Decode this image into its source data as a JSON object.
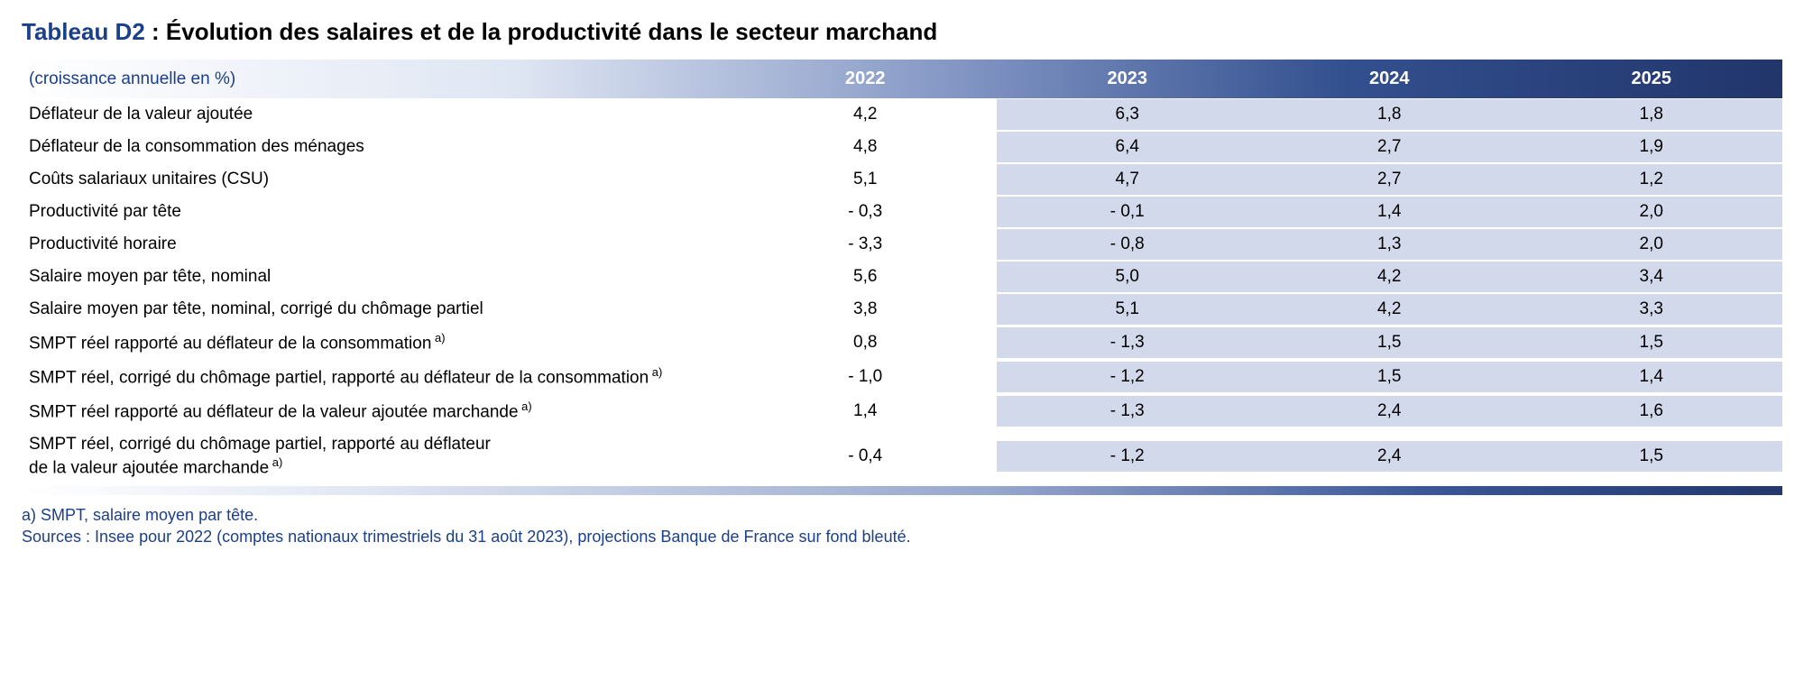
{
  "title": {
    "prefix": "Tableau D2",
    "separator": " : ",
    "text": "Évolution des salaires et de la productivité dans le secteur marchand"
  },
  "header": {
    "label": "(croissance annuelle en %)",
    "years": [
      "2022",
      "2023",
      "2024",
      "2025"
    ]
  },
  "colors": {
    "brand": "#1b3f8b",
    "tint_bg": "#d2d9eb",
    "white": "#ffffff",
    "text": "#000000"
  },
  "column_tints": [
    "white",
    "tint",
    "tint",
    "tint"
  ],
  "rows": [
    {
      "label": "Déflateur de la valeur ajoutée",
      "sup": "",
      "values": [
        "4,2",
        "6,3",
        "1,8",
        "1,8"
      ]
    },
    {
      "label": "Déflateur de la consommation des ménages",
      "sup": "",
      "values": [
        "4,8",
        "6,4",
        "2,7",
        "1,9"
      ]
    },
    {
      "label": "Coûts salariaux unitaires (CSU)",
      "sup": "",
      "values": [
        "5,1",
        "4,7",
        "2,7",
        "1,2"
      ]
    },
    {
      "label": "Productivité par tête",
      "sup": "",
      "values": [
        "- 0,3",
        "- 0,1",
        "1,4",
        "2,0"
      ]
    },
    {
      "label": "Productivité horaire",
      "sup": "",
      "values": [
        "- 3,3",
        "- 0,8",
        "1,3",
        "2,0"
      ]
    },
    {
      "label": "Salaire moyen par tête, nominal",
      "sup": "",
      "values": [
        "5,6",
        "5,0",
        "4,2",
        "3,4"
      ]
    },
    {
      "label": "Salaire moyen par tête, nominal, corrigé du chômage partiel",
      "sup": "",
      "values": [
        "3,8",
        "5,1",
        "4,2",
        "3,3"
      ]
    },
    {
      "label": "SMPT réel rapporté au déflateur de la consommation",
      "sup": "a)",
      "values": [
        "0,8",
        "- 1,3",
        "1,5",
        "1,5"
      ]
    },
    {
      "label": "SMPT réel, corrigé du chômage partiel, rapporté au déflateur de la consommation",
      "sup": "a)",
      "values": [
        "- 1,0",
        "- 1,2",
        "1,5",
        "1,4"
      ]
    },
    {
      "label": "SMPT réel rapporté au déflateur de la valeur ajoutée marchande",
      "sup": "a)",
      "values": [
        "1,4",
        "- 1,3",
        "2,4",
        "1,6"
      ]
    },
    {
      "label": "SMPT réel, corrigé du chômage partiel, rapporté au déflateur\nde la valeur ajoutée marchande",
      "sup": "a)",
      "values": [
        "- 0,4",
        "- 1,2",
        "2,4",
        "1,5"
      ]
    }
  ],
  "footnotes": {
    "note_a": "a)  SMPT, salaire moyen par tête.",
    "sources": "Sources : Insee pour 2022 (comptes nationaux trimestriels du 31 août 2023), projections Banque de France sur fond bleuté."
  }
}
